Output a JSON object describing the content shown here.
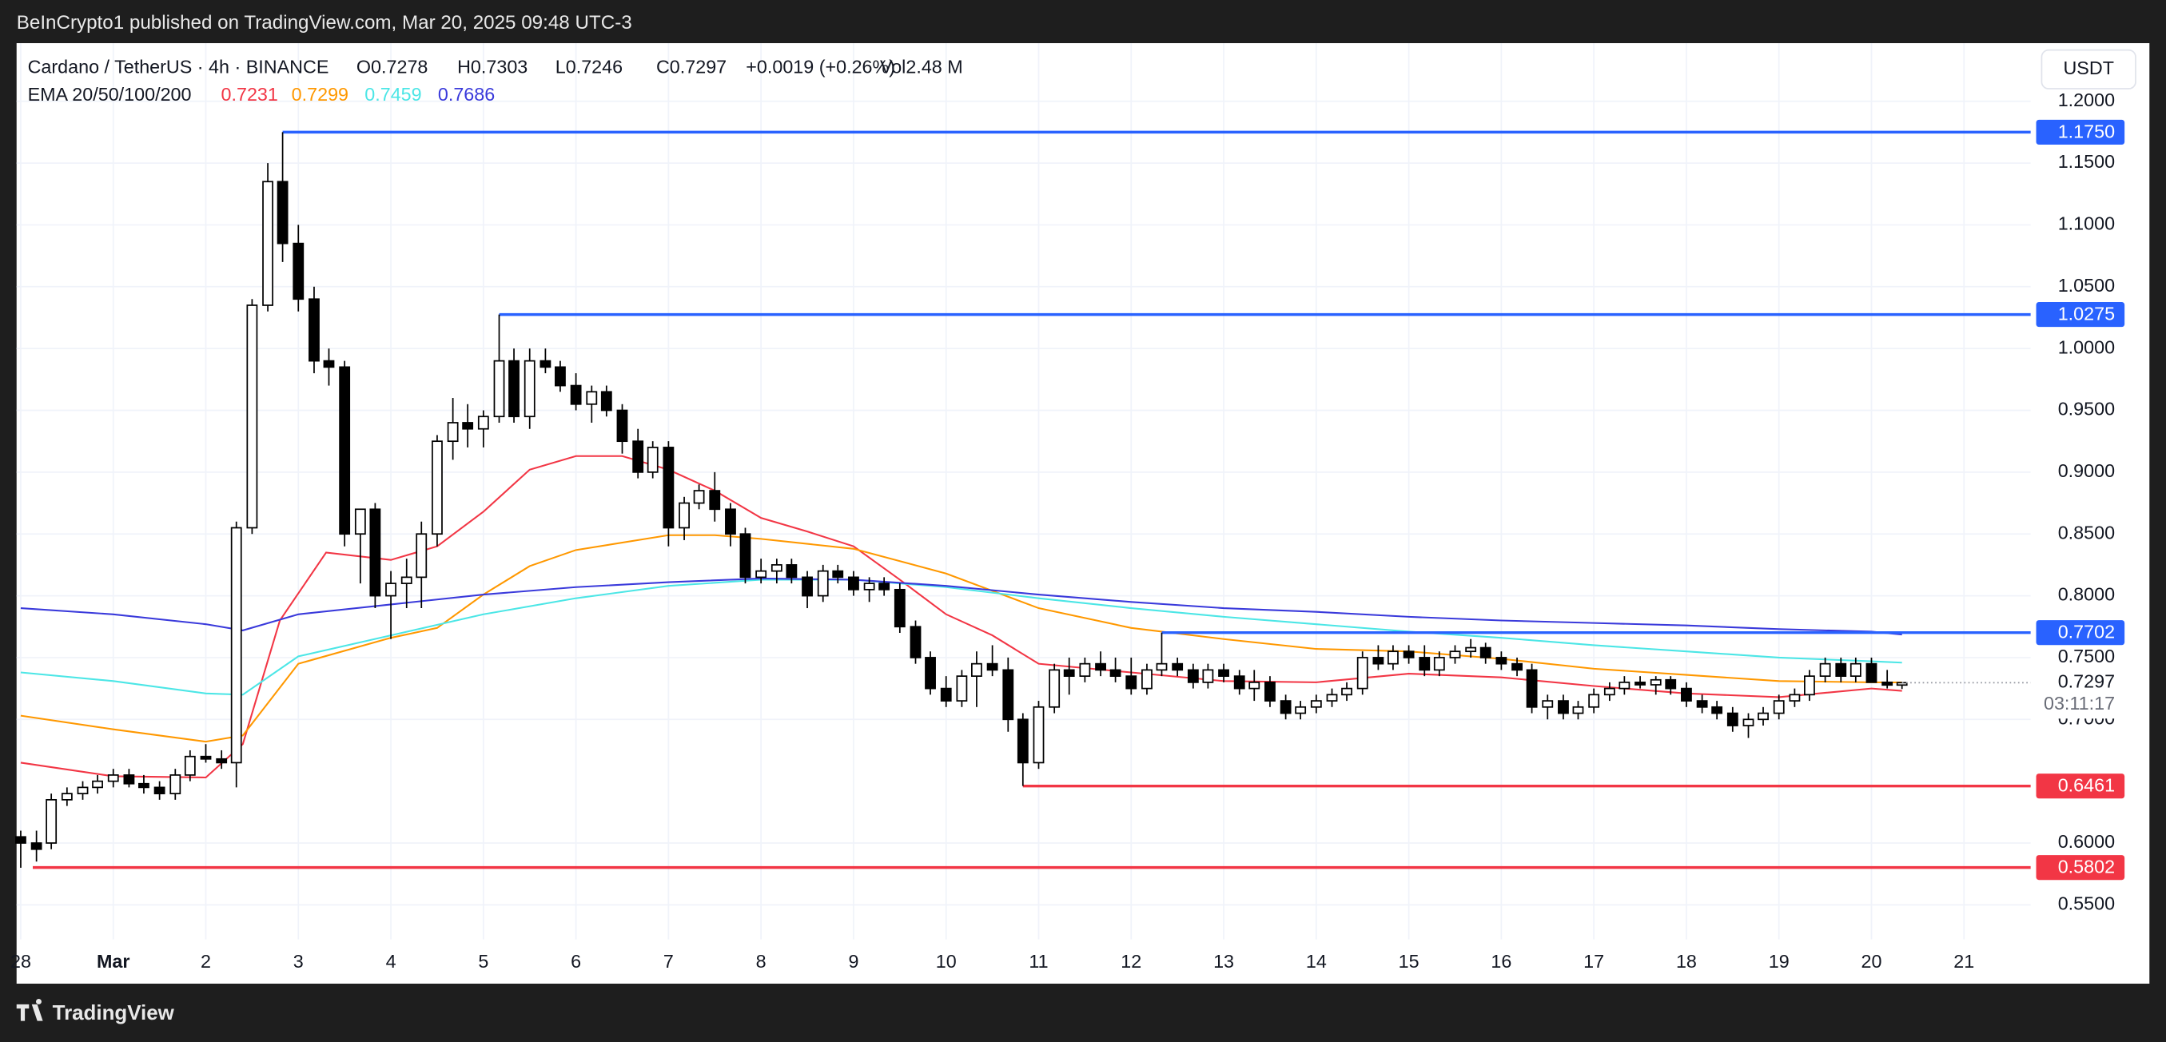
{
  "header": {
    "text": "BeInCrypto1 published on TradingView.com, Mar 20, 2025 09:48 UTC-3"
  },
  "footer": {
    "brand": "TradingView"
  },
  "currency_button": "USDT",
  "chart_data": {
    "type": "candlestick",
    "symbol": "Cardano / TetherUS · 4h · BINANCE",
    "ohlc": [
      "O0.7278",
      "H0.7303",
      "L0.7246",
      "C0.7297",
      "+0.0019 (+0.26%)",
      "Vol2.48 M"
    ],
    "indicator_label": "EMA 20/50/100/200",
    "xlim": [
      -0.045,
      21.72
    ],
    "ylim": [
      0.522,
      1.247
    ],
    "xticks": [
      {
        "value": 0,
        "label": "28"
      },
      {
        "value": 1,
        "label": "Mar"
      },
      2,
      3,
      4,
      5,
      6,
      7,
      8,
      9,
      10,
      11,
      12,
      13,
      14,
      15,
      16,
      17,
      18,
      19,
      20,
      21
    ],
    "yticks": [
      {
        "value": 0.55,
        "label": "0.5500"
      },
      {
        "value": 0.6,
        "label": "0.6000"
      },
      {
        "value": 0.7,
        "label": "0.7000"
      },
      {
        "value": 0.75,
        "label": "0.7500"
      },
      {
        "value": 0.8,
        "label": "0.8000"
      },
      {
        "value": 0.85,
        "label": "0.8500"
      },
      {
        "value": 0.9,
        "label": "0.9000"
      },
      {
        "value": 0.95,
        "label": "0.9500"
      },
      {
        "value": 1.0,
        "label": "1.0000"
      },
      {
        "value": 1.05,
        "label": "1.0500"
      },
      {
        "value": 1.1,
        "label": "1.1000"
      },
      {
        "value": 1.15,
        "label": "1.1500"
      },
      {
        "value": 1.2,
        "label": "1.2000"
      }
    ],
    "grid": true,
    "up_color": "#ffffff",
    "down_color": "#000000",
    "candles": [
      [
        0,
        0.605,
        0.61,
        0.58,
        0.6
      ],
      [
        0.17,
        0.6,
        0.61,
        0.585,
        0.595
      ],
      [
        0.33,
        0.6,
        0.64,
        0.595,
        0.635
      ],
      [
        0.5,
        0.635,
        0.645,
        0.63,
        0.64
      ],
      [
        0.67,
        0.64,
        0.65,
        0.635,
        0.645
      ],
      [
        0.83,
        0.645,
        0.655,
        0.64,
        0.65
      ],
      [
        1,
        0.65,
        0.66,
        0.645,
        0.655
      ],
      [
        1.17,
        0.655,
        0.66,
        0.645,
        0.648
      ],
      [
        1.33,
        0.648,
        0.655,
        0.64,
        0.645
      ],
      [
        1.5,
        0.645,
        0.65,
        0.635,
        0.64
      ],
      [
        1.67,
        0.64,
        0.66,
        0.635,
        0.655
      ],
      [
        1.83,
        0.655,
        0.675,
        0.65,
        0.67
      ],
      [
        2,
        0.67,
        0.68,
        0.665,
        0.668
      ],
      [
        2.17,
        0.668,
        0.675,
        0.66,
        0.665
      ],
      [
        2.33,
        0.665,
        0.86,
        0.645,
        0.855
      ],
      [
        2.5,
        0.855,
        1.04,
        0.85,
        1.035
      ],
      [
        2.67,
        1.035,
        1.15,
        1.03,
        1.135
      ],
      [
        2.83,
        1.135,
        1.175,
        1.07,
        1.085
      ],
      [
        3,
        1.085,
        1.1,
        1.03,
        1.04
      ],
      [
        3.17,
        1.04,
        1.05,
        0.98,
        0.99
      ],
      [
        3.33,
        0.99,
        1.0,
        0.97,
        0.985
      ],
      [
        3.5,
        0.985,
        0.99,
        0.84,
        0.85
      ],
      [
        3.67,
        0.85,
        0.87,
        0.81,
        0.87
      ],
      [
        3.83,
        0.87,
        0.875,
        0.79,
        0.8
      ],
      [
        4,
        0.8,
        0.82,
        0.765,
        0.81
      ],
      [
        4.17,
        0.81,
        0.83,
        0.79,
        0.815
      ],
      [
        4.33,
        0.815,
        0.86,
        0.79,
        0.85
      ],
      [
        4.5,
        0.85,
        0.93,
        0.84,
        0.925
      ],
      [
        4.67,
        0.925,
        0.96,
        0.91,
        0.94
      ],
      [
        4.83,
        0.94,
        0.955,
        0.92,
        0.935
      ],
      [
        5,
        0.935,
        0.95,
        0.92,
        0.945
      ],
      [
        5.17,
        0.945,
        1.0275,
        0.94,
        0.99
      ],
      [
        5.33,
        0.99,
        1.0,
        0.94,
        0.945
      ],
      [
        5.5,
        0.945,
        1.0,
        0.935,
        0.99
      ],
      [
        5.67,
        0.99,
        1.0,
        0.98,
        0.985
      ],
      [
        5.83,
        0.985,
        0.99,
        0.965,
        0.97
      ],
      [
        6,
        0.97,
        0.98,
        0.95,
        0.955
      ],
      [
        6.17,
        0.955,
        0.97,
        0.94,
        0.965
      ],
      [
        6.33,
        0.965,
        0.97,
        0.945,
        0.95
      ],
      [
        6.5,
        0.95,
        0.955,
        0.915,
        0.925
      ],
      [
        6.67,
        0.925,
        0.935,
        0.895,
        0.9
      ],
      [
        6.83,
        0.9,
        0.925,
        0.895,
        0.92
      ],
      [
        7,
        0.92,
        0.925,
        0.84,
        0.855
      ],
      [
        7.17,
        0.855,
        0.88,
        0.845,
        0.875
      ],
      [
        7.33,
        0.875,
        0.89,
        0.87,
        0.885
      ],
      [
        7.5,
        0.885,
        0.9,
        0.86,
        0.87
      ],
      [
        7.67,
        0.87,
        0.875,
        0.84,
        0.85
      ],
      [
        7.83,
        0.85,
        0.855,
        0.81,
        0.815
      ],
      [
        8,
        0.815,
        0.83,
        0.81,
        0.82
      ],
      [
        8.17,
        0.82,
        0.83,
        0.81,
        0.825
      ],
      [
        8.33,
        0.825,
        0.83,
        0.81,
        0.815
      ],
      [
        8.5,
        0.815,
        0.82,
        0.79,
        0.8
      ],
      [
        8.67,
        0.8,
        0.825,
        0.795,
        0.82
      ],
      [
        8.83,
        0.82,
        0.825,
        0.81,
        0.815
      ],
      [
        9,
        0.815,
        0.82,
        0.8,
        0.805
      ],
      [
        9.17,
        0.805,
        0.815,
        0.795,
        0.81
      ],
      [
        9.33,
        0.81,
        0.815,
        0.8,
        0.805
      ],
      [
        9.5,
        0.805,
        0.81,
        0.77,
        0.775
      ],
      [
        9.67,
        0.775,
        0.78,
        0.745,
        0.75
      ],
      [
        9.83,
        0.75,
        0.755,
        0.72,
        0.725
      ],
      [
        10,
        0.725,
        0.735,
        0.71,
        0.715
      ],
      [
        10.17,
        0.715,
        0.74,
        0.71,
        0.735
      ],
      [
        10.33,
        0.735,
        0.755,
        0.71,
        0.745
      ],
      [
        10.5,
        0.745,
        0.76,
        0.735,
        0.74
      ],
      [
        10.67,
        0.74,
        0.75,
        0.69,
        0.7
      ],
      [
        10.83,
        0.7,
        0.705,
        0.6461,
        0.665
      ],
      [
        11,
        0.665,
        0.715,
        0.66,
        0.71
      ],
      [
        11.17,
        0.71,
        0.745,
        0.705,
        0.74
      ],
      [
        11.33,
        0.74,
        0.75,
        0.72,
        0.735
      ],
      [
        11.5,
        0.735,
        0.75,
        0.73,
        0.745
      ],
      [
        11.67,
        0.745,
        0.755,
        0.735,
        0.74
      ],
      [
        11.83,
        0.74,
        0.75,
        0.73,
        0.735
      ],
      [
        12,
        0.735,
        0.75,
        0.72,
        0.725
      ],
      [
        12.17,
        0.725,
        0.745,
        0.72,
        0.74
      ],
      [
        12.33,
        0.74,
        0.7702,
        0.735,
        0.745
      ],
      [
        12.5,
        0.745,
        0.75,
        0.735,
        0.74
      ],
      [
        12.67,
        0.74,
        0.745,
        0.725,
        0.73
      ],
      [
        12.83,
        0.73,
        0.745,
        0.725,
        0.74
      ],
      [
        13,
        0.74,
        0.745,
        0.73,
        0.735
      ],
      [
        13.17,
        0.735,
        0.74,
        0.72,
        0.725
      ],
      [
        13.33,
        0.725,
        0.74,
        0.715,
        0.73
      ],
      [
        13.5,
        0.73,
        0.735,
        0.71,
        0.715
      ],
      [
        13.67,
        0.715,
        0.72,
        0.7,
        0.705
      ],
      [
        13.83,
        0.705,
        0.715,
        0.7,
        0.71
      ],
      [
        14,
        0.71,
        0.72,
        0.705,
        0.715
      ],
      [
        14.17,
        0.715,
        0.725,
        0.71,
        0.72
      ],
      [
        14.33,
        0.72,
        0.73,
        0.715,
        0.725
      ],
      [
        14.5,
        0.725,
        0.755,
        0.72,
        0.75
      ],
      [
        14.67,
        0.75,
        0.76,
        0.74,
        0.745
      ],
      [
        14.83,
        0.745,
        0.76,
        0.74,
        0.755
      ],
      [
        15,
        0.755,
        0.76,
        0.745,
        0.75
      ],
      [
        15.17,
        0.75,
        0.76,
        0.735,
        0.74
      ],
      [
        15.33,
        0.74,
        0.755,
        0.735,
        0.75
      ],
      [
        15.5,
        0.75,
        0.76,
        0.745,
        0.755
      ],
      [
        15.67,
        0.755,
        0.765,
        0.75,
        0.758
      ],
      [
        15.83,
        0.758,
        0.762,
        0.745,
        0.75
      ],
      [
        16,
        0.75,
        0.755,
        0.74,
        0.745
      ],
      [
        16.17,
        0.745,
        0.75,
        0.735,
        0.74
      ],
      [
        16.33,
        0.74,
        0.745,
        0.705,
        0.71
      ],
      [
        16.5,
        0.71,
        0.72,
        0.7,
        0.715
      ],
      [
        16.67,
        0.715,
        0.72,
        0.7,
        0.705
      ],
      [
        16.83,
        0.705,
        0.715,
        0.7,
        0.71
      ],
      [
        17,
        0.71,
        0.725,
        0.705,
        0.72
      ],
      [
        17.17,
        0.72,
        0.73,
        0.715,
        0.725
      ],
      [
        17.33,
        0.725,
        0.735,
        0.72,
        0.73
      ],
      [
        17.5,
        0.73,
        0.735,
        0.725,
        0.728
      ],
      [
        17.67,
        0.728,
        0.735,
        0.72,
        0.732
      ],
      [
        17.83,
        0.732,
        0.735,
        0.72,
        0.725
      ],
      [
        18,
        0.725,
        0.73,
        0.71,
        0.715
      ],
      [
        18.17,
        0.715,
        0.72,
        0.705,
        0.71
      ],
      [
        18.33,
        0.71,
        0.715,
        0.7,
        0.705
      ],
      [
        18.5,
        0.705,
        0.71,
        0.69,
        0.695
      ],
      [
        18.67,
        0.695,
        0.705,
        0.685,
        0.7
      ],
      [
        18.83,
        0.7,
        0.71,
        0.695,
        0.705
      ],
      [
        19,
        0.705,
        0.72,
        0.7,
        0.715
      ],
      [
        19.17,
        0.715,
        0.725,
        0.71,
        0.72
      ],
      [
        19.33,
        0.72,
        0.74,
        0.715,
        0.735
      ],
      [
        19.5,
        0.735,
        0.75,
        0.73,
        0.745
      ],
      [
        19.67,
        0.745,
        0.75,
        0.73,
        0.735
      ],
      [
        19.83,
        0.735,
        0.75,
        0.73,
        0.745
      ],
      [
        20,
        0.745,
        0.75,
        0.73,
        0.73
      ],
      [
        20.17,
        0.73,
        0.74,
        0.725,
        0.7278
      ],
      [
        20.33,
        0.7278,
        0.7303,
        0.7246,
        0.7297
      ]
    ],
    "series": [
      {
        "name": "0.7231",
        "color": "#f23645",
        "x": [
          0,
          1,
          2,
          2.4,
          2.8,
          3.3,
          4,
          4.5,
          5,
          5.5,
          6,
          6.5,
          7,
          7.5,
          8,
          8.5,
          9,
          9.5,
          10,
          10.5,
          11,
          12,
          13,
          14,
          15,
          16,
          17,
          18,
          19,
          20,
          20.33
        ],
        "values": [
          0.665,
          0.654,
          0.653,
          0.68,
          0.78,
          0.835,
          0.829,
          0.84,
          0.868,
          0.902,
          0.913,
          0.913,
          0.902,
          0.885,
          0.863,
          0.852,
          0.84,
          0.813,
          0.785,
          0.768,
          0.745,
          0.738,
          0.731,
          0.73,
          0.737,
          0.734,
          0.727,
          0.721,
          0.718,
          0.725,
          0.7231
        ]
      },
      {
        "name": "0.7299",
        "color": "#ff9800",
        "x": [
          0,
          1,
          2,
          2.4,
          3,
          4,
          4.5,
          5,
          5.5,
          6,
          7,
          7.5,
          8,
          9,
          10,
          11,
          12,
          13,
          14,
          15,
          16,
          17,
          18,
          19,
          20,
          20.33
        ],
        "values": [
          0.703,
          0.692,
          0.682,
          0.687,
          0.745,
          0.766,
          0.774,
          0.801,
          0.824,
          0.837,
          0.849,
          0.849,
          0.846,
          0.838,
          0.818,
          0.79,
          0.774,
          0.765,
          0.757,
          0.755,
          0.749,
          0.741,
          0.736,
          0.731,
          0.73,
          0.7299
        ]
      },
      {
        "name": "0.7459",
        "color": "#4ce6e6",
        "x": [
          0,
          1,
          2,
          2.4,
          3,
          4,
          5,
          6,
          7,
          8,
          9,
          10,
          11,
          12,
          13,
          14,
          15,
          16,
          17,
          18,
          19,
          20,
          20.33
        ],
        "values": [
          0.738,
          0.731,
          0.721,
          0.72,
          0.751,
          0.768,
          0.785,
          0.798,
          0.808,
          0.813,
          0.813,
          0.807,
          0.798,
          0.79,
          0.783,
          0.777,
          0.771,
          0.766,
          0.76,
          0.755,
          0.75,
          0.747,
          0.7459
        ]
      },
      {
        "name": "0.7686",
        "color": "#3a3adb",
        "x": [
          0,
          1,
          2,
          2.4,
          3,
          4,
          5,
          6,
          7,
          8,
          9,
          10,
          11,
          12,
          13,
          14,
          15,
          16,
          17,
          18,
          19,
          20,
          20.33
        ],
        "values": [
          0.79,
          0.785,
          0.777,
          0.772,
          0.785,
          0.793,
          0.801,
          0.807,
          0.811,
          0.814,
          0.813,
          0.808,
          0.801,
          0.795,
          0.79,
          0.787,
          0.783,
          0.78,
          0.778,
          0.776,
          0.773,
          0.771,
          0.7686
        ]
      }
    ],
    "levels": [
      {
        "value": 1.175,
        "label": "1.1750",
        "color": "#2962ff",
        "x": 2.83
      },
      {
        "value": 1.0275,
        "label": "1.0275",
        "color": "#2962ff",
        "x": 5.17
      },
      {
        "value": 0.7702,
        "label": "0.7702",
        "color": "#2962ff",
        "x": 12.33
      },
      {
        "value": 0.6461,
        "label": "0.6461",
        "color": "#f23645",
        "x": 10.83
      },
      {
        "value": 0.5802,
        "label": "0.5802",
        "color": "#f23645",
        "x": 0.13
      }
    ],
    "last_price": {
      "value": 0.7297,
      "label": "0.7297",
      "countdown": "03:11:17"
    }
  }
}
